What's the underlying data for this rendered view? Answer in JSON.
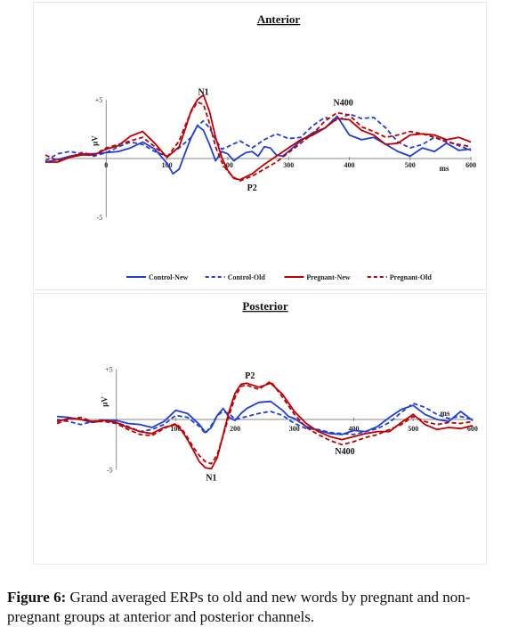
{
  "chart_data": [
    {
      "type": "line",
      "title": "Anterior",
      "ylabel": "μV",
      "xlabel": "ms",
      "y_tick_labels": [
        "+5",
        "-5"
      ],
      "x_ticks": [
        0,
        100,
        200,
        300,
        400,
        500,
        600
      ],
      "xlim": [
        -100,
        600
      ],
      "ylim": [
        -5,
        5
      ],
      "polarity": "positive up",
      "annotations": [
        {
          "text": "N1",
          "x": 160,
          "y": 5.1
        },
        {
          "text": "N400",
          "x": 390,
          "y": 4.2
        },
        {
          "text": "P2",
          "x": 240,
          "y": -1.8
        }
      ],
      "legend_position": "bottom",
      "series": [
        {
          "name": "Control-New",
          "color": "#1f3fd6",
          "dash": "solid",
          "x": [
            -100,
            -80,
            -60,
            -40,
            -20,
            0,
            20,
            40,
            60,
            80,
            100,
            110,
            120,
            130,
            140,
            150,
            160,
            170,
            180,
            190,
            200,
            210,
            220,
            230,
            240,
            250,
            260,
            270,
            280,
            290,
            300,
            320,
            340,
            360,
            380,
            400,
            420,
            440,
            460,
            480,
            500,
            520,
            540,
            560,
            580,
            600
          ],
          "y": [
            -0.3,
            -0.1,
            0.2,
            0.4,
            0.4,
            0.5,
            0.6,
            0.9,
            1.4,
            0.8,
            -0.4,
            -1.3,
            -0.9,
            0.5,
            1.8,
            2.8,
            2.4,
            1.2,
            -0.2,
            0.6,
            0.4,
            -0.2,
            0.2,
            0.5,
            0.6,
            0.2,
            1.0,
            0.9,
            0.3,
            0.2,
            0.6,
            1.5,
            2.2,
            2.6,
            3.6,
            2.0,
            1.6,
            1.8,
            1.2,
            0.6,
            0.2,
            0.9,
            0.6,
            1.3,
            0.7,
            0.8
          ]
        },
        {
          "name": "Control-Old",
          "color": "#1f3fd6",
          "dash": "dashed",
          "x": [
            -100,
            -80,
            -60,
            -40,
            -20,
            0,
            20,
            40,
            60,
            80,
            100,
            120,
            140,
            150,
            160,
            170,
            180,
            190,
            200,
            220,
            240,
            260,
            280,
            300,
            320,
            340,
            360,
            380,
            400,
            420,
            440,
            460,
            480,
            500,
            520,
            540,
            560,
            580,
            600
          ],
          "y": [
            -0.2,
            0.4,
            0.6,
            0.4,
            0.2,
            0.5,
            1.0,
            1.4,
            1.2,
            0.6,
            0.2,
            0.9,
            1.8,
            2.8,
            3.2,
            2.6,
            1.6,
            0.8,
            1.0,
            1.5,
            0.9,
            1.6,
            2.1,
            1.7,
            1.8,
            2.8,
            3.5,
            3.2,
            3.8,
            3.4,
            3.5,
            2.6,
            1.4,
            0.9,
            1.2,
            1.8,
            1.5,
            1.1,
            0.7
          ]
        },
        {
          "name": "Pregnant-New",
          "color": "#c00000",
          "dash": "solid",
          "x": [
            -100,
            -80,
            -60,
            -40,
            -20,
            0,
            20,
            40,
            60,
            80,
            100,
            120,
            130,
            140,
            150,
            160,
            170,
            180,
            190,
            200,
            210,
            220,
            240,
            260,
            280,
            300,
            320,
            340,
            360,
            380,
            400,
            420,
            440,
            460,
            480,
            500,
            520,
            540,
            560,
            580,
            600
          ],
          "y": [
            -0.3,
            -0.3,
            0.1,
            0.3,
            0.3,
            0.8,
            1.1,
            1.9,
            2.3,
            1.3,
            0.1,
            1.0,
            2.5,
            4.1,
            5.0,
            5.4,
            4.0,
            1.8,
            0.1,
            -1.0,
            -1.7,
            -1.8,
            -1.3,
            -0.5,
            0.2,
            0.9,
            1.6,
            2.0,
            2.6,
            3.4,
            3.3,
            2.4,
            2.0,
            1.2,
            1.3,
            2.0,
            2.1,
            2.0,
            1.6,
            1.8,
            1.4
          ]
        },
        {
          "name": "Pregnant-Old",
          "color": "#c00000",
          "dash": "dashed",
          "x": [
            -100,
            -80,
            -60,
            -40,
            -20,
            0,
            20,
            40,
            60,
            80,
            100,
            120,
            130,
            140,
            150,
            160,
            170,
            180,
            190,
            200,
            210,
            220,
            240,
            260,
            280,
            300,
            320,
            340,
            360,
            380,
            400,
            420,
            440,
            460,
            480,
            500,
            520,
            540,
            560,
            580,
            600
          ],
          "y": [
            0.3,
            -0.2,
            0.1,
            0.5,
            0.3,
            0.9,
            1.2,
            1.5,
            1.8,
            1.0,
            0.1,
            1.5,
            2.8,
            4.0,
            4.8,
            4.6,
            3.0,
            1.0,
            -0.3,
            -1.1,
            -1.6,
            -1.9,
            -1.5,
            -0.9,
            -0.3,
            0.5,
            1.3,
            2.1,
            3.2,
            3.9,
            3.7,
            2.7,
            2.3,
            1.8,
            2.0,
            2.3,
            2.1,
            1.8,
            1.4,
            1.2,
            1.0
          ]
        }
      ]
    },
    {
      "type": "line",
      "title": "Posterior",
      "ylabel": "μV",
      "xlabel": "ms",
      "y_tick_labels": [
        "+5",
        "-5"
      ],
      "x_ticks": [
        100,
        200,
        300,
        400,
        500,
        600
      ],
      "xlim": [
        -100,
        600
      ],
      "ylim": [
        -5,
        5
      ],
      "polarity": "positive up",
      "annotations": [
        {
          "text": "P2",
          "x": 225,
          "y": 3.7
        },
        {
          "text": "N1",
          "x": 160,
          "y": -5.0
        },
        {
          "text": "N400",
          "x": 385,
          "y": -2.4
        }
      ],
      "series": [
        {
          "name": "Control-New",
          "color": "#1f3fd6",
          "dash": "solid",
          "x": [
            -100,
            -80,
            -60,
            -40,
            -20,
            0,
            20,
            40,
            60,
            80,
            100,
            120,
            140,
            150,
            160,
            170,
            180,
            190,
            200,
            210,
            220,
            240,
            260,
            280,
            290,
            300,
            320,
            340,
            360,
            380,
            400,
            420,
            440,
            460,
            480,
            500,
            520,
            540,
            560,
            580,
            600
          ],
          "y": [
            0.3,
            0.2,
            0.0,
            -0.3,
            -0.1,
            -0.1,
            -0.4,
            -0.5,
            -0.8,
            -0.2,
            0.9,
            0.6,
            -0.5,
            -1.3,
            -0.8,
            0.4,
            1.1,
            0.2,
            -0.1,
            0.6,
            1.1,
            1.7,
            1.8,
            0.9,
            0.3,
            0.1,
            -0.7,
            -1.1,
            -1.4,
            -1.5,
            -1.1,
            -1.2,
            -0.7,
            0.2,
            1.0,
            1.4,
            0.5,
            0.0,
            -0.2,
            0.8,
            -0.1
          ]
        },
        {
          "name": "Control-Old",
          "color": "#1f3fd6",
          "dash": "dashed",
          "x": [
            -100,
            -80,
            -60,
            -40,
            -20,
            0,
            20,
            40,
            60,
            80,
            100,
            120,
            140,
            150,
            160,
            170,
            180,
            190,
            200,
            220,
            240,
            260,
            280,
            300,
            320,
            340,
            360,
            380,
            400,
            420,
            440,
            460,
            480,
            500,
            520,
            540,
            560,
            580,
            600
          ],
          "y": [
            0.0,
            -0.2,
            -0.5,
            -0.2,
            0.0,
            -0.3,
            -0.7,
            -1.2,
            -1.0,
            -0.5,
            0.4,
            0.2,
            -0.7,
            -1.4,
            -0.6,
            0.4,
            0.8,
            0.6,
            0.0,
            0.3,
            0.6,
            0.8,
            0.4,
            -0.4,
            -0.9,
            -1.0,
            -1.3,
            -1.4,
            -1.5,
            -1.2,
            -0.9,
            -0.3,
            0.7,
            1.6,
            1.2,
            0.5,
            0.1,
            0.3,
            0.0
          ]
        },
        {
          "name": "Pregnant-New",
          "color": "#c00000",
          "dash": "solid",
          "x": [
            -100,
            -80,
            -60,
            -40,
            -20,
            0,
            20,
            40,
            60,
            80,
            100,
            110,
            120,
            130,
            140,
            150,
            160,
            170,
            180,
            190,
            200,
            210,
            220,
            240,
            260,
            280,
            300,
            320,
            340,
            360,
            380,
            400,
            420,
            440,
            460,
            480,
            500,
            520,
            540,
            560,
            580,
            600
          ],
          "y": [
            -0.2,
            0.1,
            0.0,
            -0.2,
            -0.1,
            -0.3,
            -0.8,
            -1.2,
            -1.4,
            -0.8,
            -0.5,
            -1.1,
            -2.0,
            -3.1,
            -4.2,
            -4.8,
            -4.9,
            -3.8,
            -1.5,
            0.8,
            2.6,
            3.5,
            3.6,
            3.2,
            3.6,
            2.5,
            0.8,
            -0.4,
            -1.2,
            -1.7,
            -2.0,
            -1.7,
            -1.4,
            -1.2,
            -1.2,
            -0.3,
            0.5,
            -0.5,
            -1.0,
            -0.8,
            -0.9,
            -0.6
          ]
        },
        {
          "name": "Pregnant-Old",
          "color": "#c00000",
          "dash": "dashed",
          "x": [
            -100,
            -80,
            -60,
            -40,
            -20,
            0,
            20,
            40,
            60,
            80,
            100,
            110,
            120,
            130,
            140,
            150,
            160,
            170,
            180,
            190,
            200,
            210,
            220,
            240,
            260,
            280,
            300,
            320,
            340,
            360,
            380,
            400,
            420,
            440,
            460,
            480,
            500,
            520,
            540,
            560,
            580,
            600
          ],
          "y": [
            -0.4,
            0.0,
            0.2,
            -0.2,
            -0.2,
            -0.4,
            -1.0,
            -1.5,
            -1.6,
            -0.9,
            -0.4,
            -0.9,
            -1.8,
            -2.8,
            -3.6,
            -4.2,
            -4.4,
            -3.5,
            -1.6,
            0.4,
            2.2,
            3.3,
            3.4,
            3.0,
            3.8,
            2.2,
            0.5,
            -0.8,
            -1.5,
            -2.1,
            -2.5,
            -2.2,
            -1.8,
            -1.5,
            -1.0,
            -0.5,
            0.3,
            -0.2,
            -0.5,
            -0.3,
            -0.4,
            -0.2
          ]
        }
      ]
    }
  ],
  "caption": {
    "label": "Figure 6:",
    "text": "Grand averaged ERPs to old and new words by pregnant and non-pregnant groups at anterior and posterior channels."
  }
}
